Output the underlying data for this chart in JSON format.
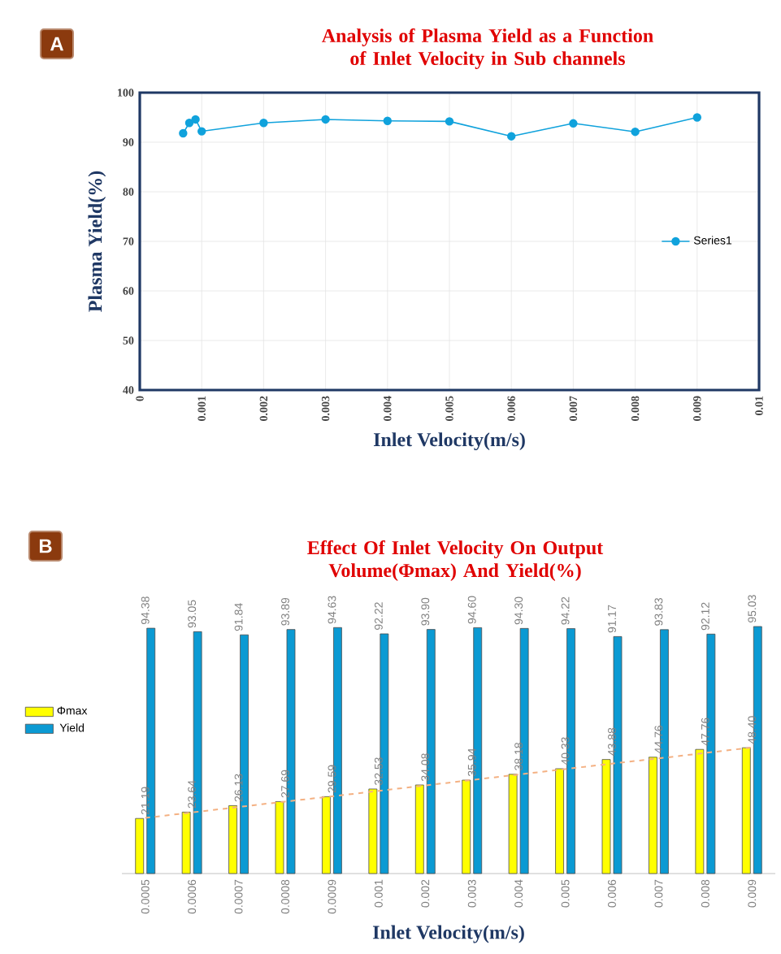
{
  "chart_data": [
    {
      "type": "line",
      "title": "Analysis of Plasma Yield as a Function of Inlet Velocity in Sub channels",
      "xlabel": "Inlet Velocity(m/s)",
      "ylabel": "Plasma Yield(%)",
      "x": [
        0.0007,
        0.0008,
        0.0009,
        0.001,
        0.002,
        0.003,
        0.004,
        0.005,
        0.006,
        0.007,
        0.008,
        0.009
      ],
      "series": [
        {
          "name": "Series1",
          "color": "#10a2dc",
          "values": [
            91.8,
            93.9,
            94.6,
            92.2,
            93.9,
            94.6,
            94.3,
            94.2,
            91.2,
            93.8,
            92.1,
            95.0
          ]
        }
      ],
      "xlim": [
        0,
        0.01
      ],
      "xticks": [
        0,
        0.001,
        0.002,
        0.003,
        0.004,
        0.005,
        0.006,
        0.007,
        0.008,
        0.009,
        0.01
      ],
      "ylim": [
        40,
        100
      ],
      "yticks": [
        40,
        50,
        60,
        70,
        80,
        90,
        100
      ],
      "grid": true,
      "legend": "right",
      "marker": "circle",
      "annotations": [
        "A"
      ]
    },
    {
      "type": "bar",
      "title": "Effect Of Inlet Velocity On  Output Volume(Φmax) And Yield(%)",
      "xlabel": "Inlet Velocity(m/s)",
      "categories": [
        "0.0005",
        "0.0006",
        "0.0007",
        "0.0008",
        "0.0009",
        "0.001",
        "0.002",
        "0.003",
        "0.004",
        "0.005",
        "0.006",
        "0.007",
        "0.008",
        "0.009"
      ],
      "series": [
        {
          "name": "Φmax",
          "color": "#ffff00",
          "values": [
            21.19,
            23.64,
            26.13,
            27.69,
            29.59,
            32.53,
            34.08,
            35.94,
            38.18,
            40.33,
            43.88,
            44.76,
            47.76,
            48.4
          ],
          "value_labels": [
            "21.19",
            "23.64",
            "26.13",
            "27.69",
            "29.59",
            "32.53",
            "34.08",
            "35.94",
            "38.18",
            "40.33",
            "43.88",
            "44.76",
            "47.76",
            "48.40"
          ]
        },
        {
          "name": "Yield",
          "color": "#0b9ad3",
          "values": [
            94.38,
            93.05,
            91.84,
            93.89,
            94.63,
            92.22,
            93.9,
            94.6,
            94.3,
            94.22,
            91.17,
            93.83,
            92.12,
            95.03
          ],
          "value_labels": [
            "94.38",
            "93.05",
            "91.84",
            "93.89",
            "94.63",
            "92.22",
            "93.90",
            "94.60",
            "94.30",
            "94.22",
            "91.17",
            "93.83",
            "92.12",
            "95.03"
          ]
        },
        {
          "type": "line",
          "color": "#f4b183",
          "line_style": "dashed",
          "values": [
            21.4,
            23.5,
            25.6,
            27.7,
            29.7,
            31.8,
            33.9,
            36.0,
            38.1,
            40.2,
            42.3,
            44.3,
            46.4,
            48.5
          ]
        }
      ],
      "legend": "left",
      "annotations": [
        "B"
      ]
    }
  ]
}
